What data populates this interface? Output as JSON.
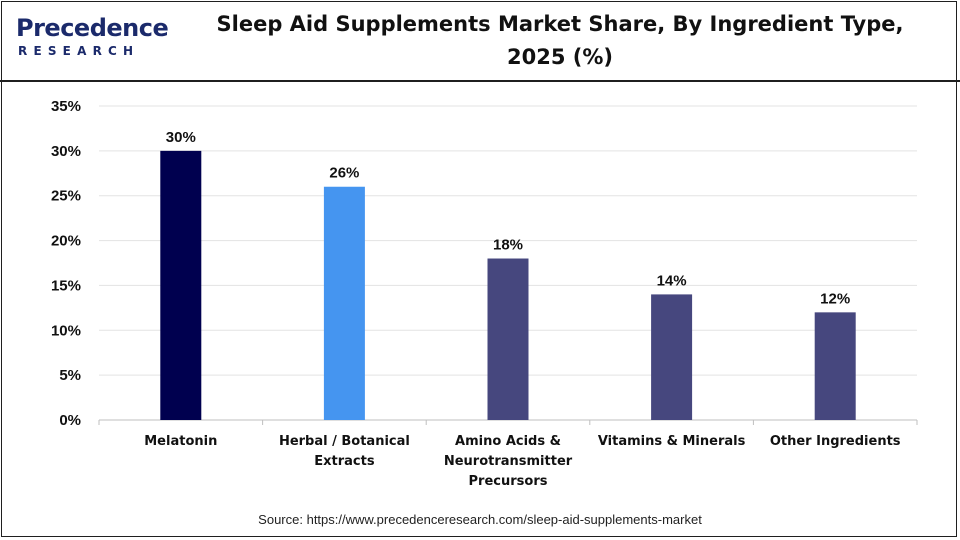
{
  "logo": {
    "main_text": "Precedence",
    "sub_text": "RESEARCH",
    "color": "#1b2a6b"
  },
  "header": {
    "title_line1": "Sleep Aid Supplements Market Share, By Ingredient Type,",
    "title_line2": "2025 (%)"
  },
  "source": {
    "text": "Source: https://www.precedenceresearch.com/sleep-aid-supplements-market"
  },
  "chart_data": {
    "type": "bar",
    "title": "Sleep Aid Supplements Market Share, By Ingredient Type, 2025 (%)",
    "xlabel": "",
    "ylabel": "",
    "ylim": [
      0,
      35
    ],
    "yticks": [
      "0%",
      "5%",
      "10%",
      "15%",
      "20%",
      "25%",
      "30%",
      "35%"
    ],
    "grid": true,
    "legend": "none",
    "categories": [
      [
        "Melatonin"
      ],
      [
        "Herbal / Botanical",
        "Extracts"
      ],
      [
        "Amino Acids &",
        "Neurotransmitter",
        "Precursors"
      ],
      [
        "Vitamins & Minerals"
      ],
      [
        "Other Ingredients"
      ]
    ],
    "values": [
      30,
      26,
      18,
      14,
      12
    ],
    "data_labels": [
      "30%",
      "26%",
      "18%",
      "14%",
      "12%"
    ],
    "colors": [
      "#00004f",
      "#4595f0",
      "#46477e",
      "#46477e",
      "#46477e"
    ]
  }
}
